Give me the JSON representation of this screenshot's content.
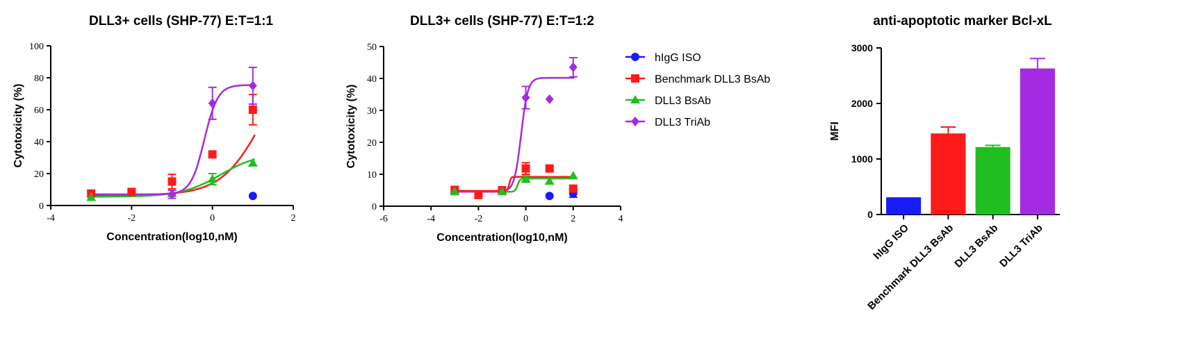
{
  "colors": {
    "hIgG ISO": "#1a1aff",
    "Benchmark DLL3 BsAb": "#ff1a1a",
    "DLL3 BsAb": "#1fbf1f",
    "DLL3 TriAb": "#a52be0"
  },
  "legend": {
    "placement": "right of middle panel",
    "entries": [
      "hIgG ISO",
      "Benchmark DLL3 BsAb",
      "DLL3 BsAb",
      "DLL3 TriAb"
    ]
  },
  "chart_data": [
    {
      "type": "scatter",
      "title": "DLL3+ cells (SHP-77) E:T=1:1",
      "xlabel": "Concentration(log10,nM)",
      "ylabel": "Cytotoxicity (%)",
      "xlim": [
        -4,
        2
      ],
      "ylim": [
        0,
        100
      ],
      "xticks": [
        -4,
        -2,
        0,
        2
      ],
      "yticks": [
        0,
        20,
        40,
        60,
        80,
        100
      ],
      "fitted_curves": true,
      "series": [
        {
          "name": "hIgG ISO",
          "marker": "circle",
          "points": [
            {
              "x": 1,
              "y": 6,
              "err": 0
            }
          ]
        },
        {
          "name": "Benchmark DLL3 BsAb",
          "marker": "square",
          "points": [
            {
              "x": -3,
              "y": 7.5,
              "err": 0
            },
            {
              "x": -2,
              "y": 8.5,
              "err": 0
            },
            {
              "x": -1,
              "y": 15,
              "err": 4.5
            },
            {
              "x": 0,
              "y": 32,
              "err": 0
            },
            {
              "x": 1,
              "y": 60,
              "err": 9.5
            }
          ],
          "fit": {
            "bottom": 6.5,
            "top": 100,
            "logEC50": 1.25,
            "hill": 0.85
          }
        },
        {
          "name": "DLL3 BsAb",
          "marker": "triangle",
          "points": [
            {
              "x": -3,
              "y": 5,
              "err": 0
            },
            {
              "x": -1,
              "y": 7.5,
              "err": 0
            },
            {
              "x": 0,
              "y": 16.5,
              "err": 3.5
            },
            {
              "x": 1,
              "y": 26.5,
              "err": 0
            }
          ],
          "fit": {
            "bottom": 5.5,
            "top": 33,
            "logEC50": 0.2,
            "hill": 0.9
          }
        },
        {
          "name": "DLL3 TriAb",
          "marker": "diamond",
          "points": [
            {
              "x": -1,
              "y": 7,
              "err": 2.5
            },
            {
              "x": 0,
              "y": 64,
              "err": 10
            },
            {
              "x": 1,
              "y": 75,
              "err": 11.5
            }
          ],
          "fit": {
            "bottom": 7,
            "top": 75.5,
            "logEC50": -0.2,
            "hill": 2.6
          }
        }
      ]
    },
    {
      "type": "scatter",
      "title": "DLL3+ cells (SHP-77) E:T=1:2",
      "xlabel": "Concentration(log10,nM)",
      "ylabel": "Cytotoxicity (%)",
      "xlim": [
        -6,
        4
      ],
      "ylim": [
        0,
        50
      ],
      "xticks": [
        -6,
        -4,
        -2,
        0,
        2,
        4
      ],
      "yticks": [
        0,
        10,
        20,
        30,
        40,
        50
      ],
      "fitted_curves": true,
      "series": [
        {
          "name": "hIgG ISO",
          "marker": "circle",
          "points": [
            {
              "x": 1,
              "y": 3.2,
              "err": 0
            },
            {
              "x": 2,
              "y": 4,
              "err": 1.2
            }
          ]
        },
        {
          "name": "Benchmark DLL3 BsAb",
          "marker": "square",
          "points": [
            {
              "x": -3,
              "y": 5,
              "err": 1.2
            },
            {
              "x": -2,
              "y": 3.5,
              "err": 1
            },
            {
              "x": -1,
              "y": 5,
              "err": 0.6
            },
            {
              "x": 0,
              "y": 11.8,
              "err": 1.8
            },
            {
              "x": 1,
              "y": 11.8,
              "err": 0.8
            },
            {
              "x": 2,
              "y": 5.5,
              "err": 0
            }
          ],
          "fit": {
            "bottom": 4.8,
            "top": 9.2,
            "logEC50": -0.7,
            "hill": 12
          }
        },
        {
          "name": "DLL3 BsAb",
          "marker": "triangle",
          "points": [
            {
              "x": -3,
              "y": 4.5,
              "err": 0
            },
            {
              "x": -1,
              "y": 4.5,
              "err": 0
            },
            {
              "x": 0,
              "y": 8.5,
              "err": 1
            },
            {
              "x": 1,
              "y": 7.8,
              "err": 0
            },
            {
              "x": 2,
              "y": 9.5,
              "err": 0
            }
          ],
          "fit": {
            "bottom": 4.5,
            "top": 8.7,
            "logEC50": -0.35,
            "hill": 8
          }
        },
        {
          "name": "DLL3 TriAb",
          "marker": "diamond",
          "points": [
            {
              "x": 0,
              "y": 34,
              "err": 3.5
            },
            {
              "x": 1,
              "y": 33.5,
              "err": 0
            },
            {
              "x": 2,
              "y": 43.5,
              "err": 3
            }
          ],
          "fit": {
            "bottom": 4.5,
            "top": 40.2,
            "logEC50": -0.2,
            "hill": 3
          }
        }
      ]
    },
    {
      "type": "bar",
      "title": "anti-apoptotic marker Bcl-xL",
      "xlabel": "",
      "ylabel": "MFI",
      "ylim": [
        0,
        3000
      ],
      "yticks": [
        0,
        1000,
        2000,
        3000
      ],
      "categories": [
        "hIgG ISO",
        "Benchmark DLL3 BsAb",
        "DLL3 BsAb",
        "DLL3 TriAb"
      ],
      "values": [
        310,
        1460,
        1215,
        2630
      ],
      "errors": [
        0,
        115,
        30,
        180
      ]
    }
  ]
}
